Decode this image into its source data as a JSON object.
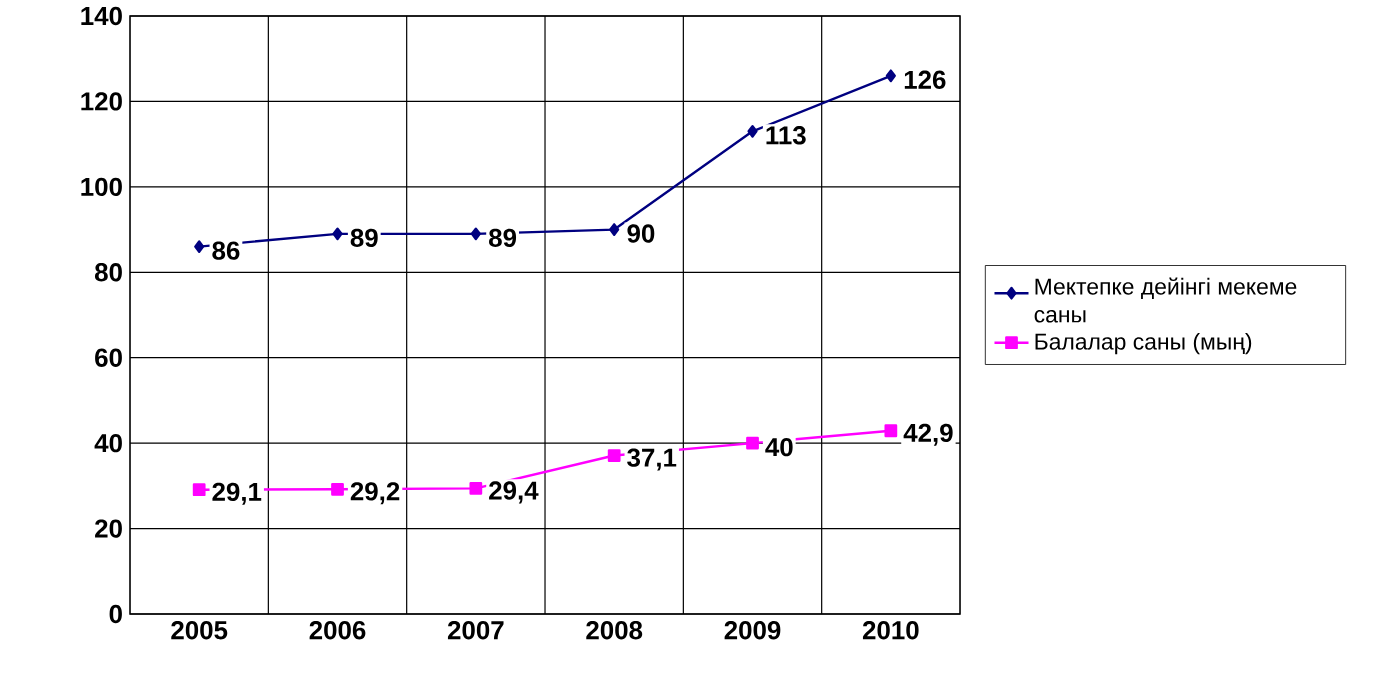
{
  "chart_data": {
    "type": "line",
    "categories": [
      "2005",
      "2006",
      "2007",
      "2008",
      "2009",
      "2010"
    ],
    "series": [
      {
        "name": "Мектепке дейінгі мекеме саны",
        "color": "#000080",
        "marker": "diamond",
        "values": [
          86,
          89,
          89,
          90,
          113,
          126
        ],
        "value_labels": [
          "86",
          "89",
          "89",
          "90",
          "113",
          "126"
        ]
      },
      {
        "name": "Балалар саны (мың)",
        "color": "#ff00ff",
        "marker": "square",
        "values": [
          29.1,
          29.2,
          29.4,
          37.1,
          40,
          42.9
        ],
        "value_labels": [
          "29,1",
          "29,2",
          "29,4",
          "37,1",
          "40",
          "42,9"
        ]
      }
    ],
    "ylim": [
      0,
      140
    ],
    "yticks": [
      0,
      20,
      40,
      60,
      80,
      100,
      120,
      140
    ],
    "grid": true,
    "legend": "right"
  }
}
